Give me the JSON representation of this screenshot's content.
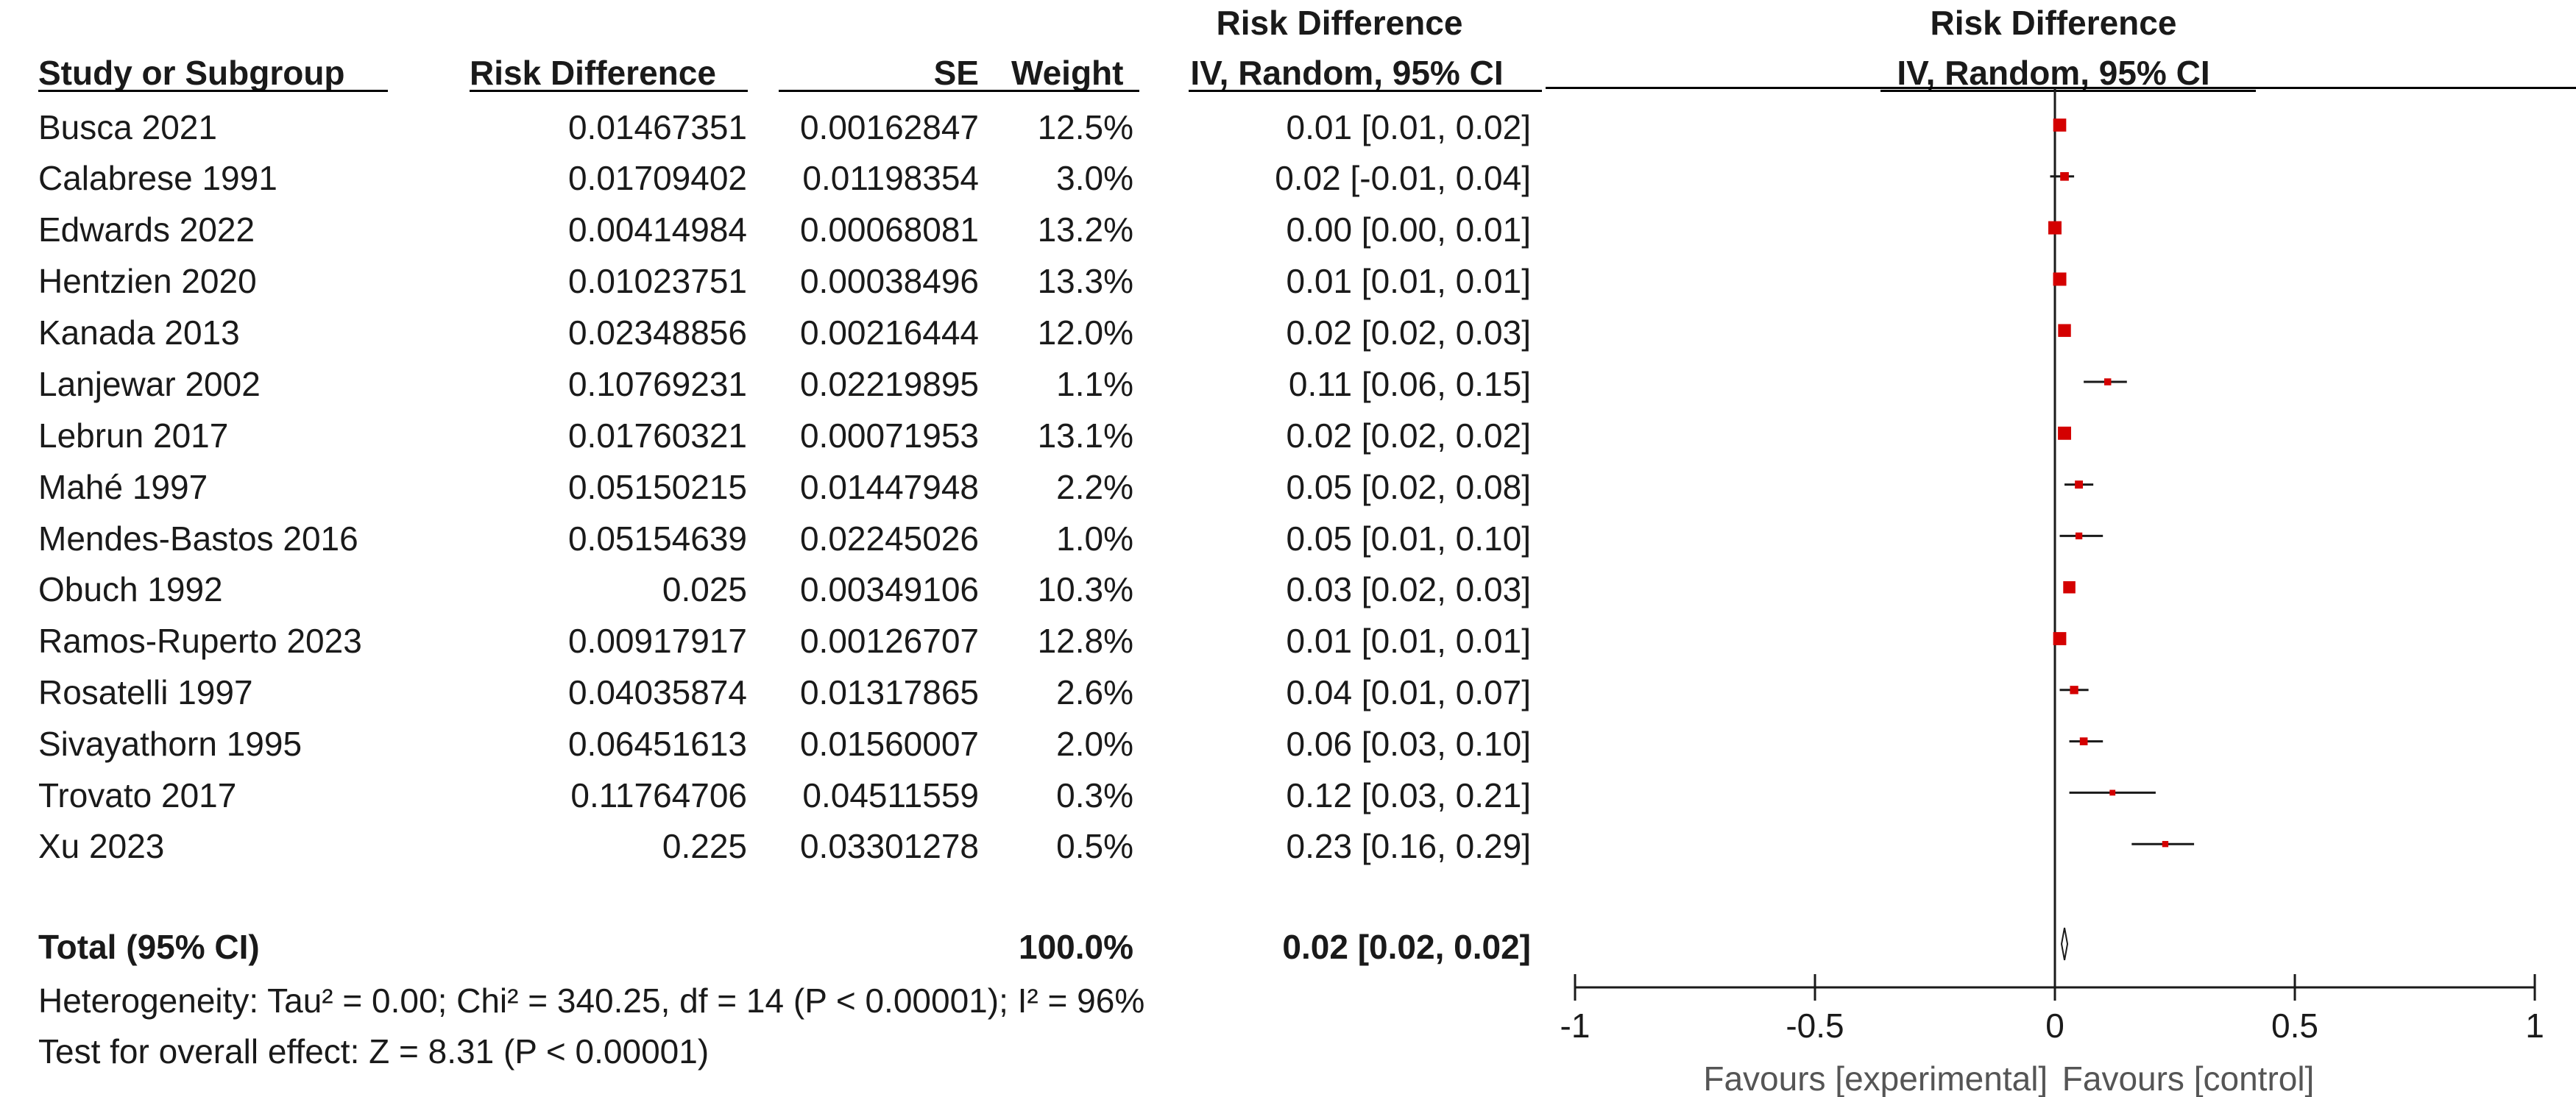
{
  "header": {
    "study": "Study or Subgroup",
    "rd": "Risk Difference",
    "se": "SE",
    "weight": "Weight",
    "ci_title": "Risk Difference",
    "ci_sub": "IV, Random, 95% CI",
    "plot_title": "Risk Difference",
    "plot_sub": "IV, Random, 95% CI"
  },
  "rows": [
    {
      "study": "Busca 2021",
      "rd": "0.01467351",
      "se": "0.00162847",
      "weight": "12.5%",
      "ci": "0.01 [0.01, 0.02]"
    },
    {
      "study": "Calabrese 1991",
      "rd": "0.01709402",
      "se": "0.01198354",
      "weight": "3.0%",
      "ci": "0.02 [-0.01, 0.04]"
    },
    {
      "study": "Edwards 2022",
      "rd": "0.00414984",
      "se": "0.00068081",
      "weight": "13.2%",
      "ci": "0.00 [0.00, 0.01]"
    },
    {
      "study": "Hentzien 2020",
      "rd": "0.01023751",
      "se": "0.00038496",
      "weight": "13.3%",
      "ci": "0.01 [0.01, 0.01]"
    },
    {
      "study": "Kanada 2013",
      "rd": "0.02348856",
      "se": "0.00216444",
      "weight": "12.0%",
      "ci": "0.02 [0.02, 0.03]"
    },
    {
      "study": "Lanjewar 2002",
      "rd": "0.10769231",
      "se": "0.02219895",
      "weight": "1.1%",
      "ci": "0.11 [0.06, 0.15]"
    },
    {
      "study": "Lebrun 2017",
      "rd": "0.01760321",
      "se": "0.00071953",
      "weight": "13.1%",
      "ci": "0.02 [0.02, 0.02]"
    },
    {
      "study": "Mahé 1997",
      "rd": "0.05150215",
      "se": "0.01447948",
      "weight": "2.2%",
      "ci": "0.05 [0.02, 0.08]"
    },
    {
      "study": "Mendes-Bastos 2016",
      "rd": "0.05154639",
      "se": "0.02245026",
      "weight": "1.0%",
      "ci": "0.05 [0.01, 0.10]"
    },
    {
      "study": "Obuch 1992",
      "rd": "0.025",
      "se": "0.00349106",
      "weight": "10.3%",
      "ci": "0.03 [0.02, 0.03]"
    },
    {
      "study": "Ramos-Ruperto 2023",
      "rd": "0.00917917",
      "se": "0.00126707",
      "weight": "12.8%",
      "ci": "0.01 [0.01, 0.01]"
    },
    {
      "study": "Rosatelli 1997",
      "rd": "0.04035874",
      "se": "0.01317865",
      "weight": "2.6%",
      "ci": "0.04 [0.01, 0.07]"
    },
    {
      "study": "Sivayathorn 1995",
      "rd": "0.06451613",
      "se": "0.01560007",
      "weight": "2.0%",
      "ci": "0.06 [0.03, 0.10]"
    },
    {
      "study": "Trovato 2017",
      "rd": "0.11764706",
      "se": "0.04511559",
      "weight": "0.3%",
      "ci": "0.12 [0.03, 0.21]"
    },
    {
      "study": "Xu 2023",
      "rd": "0.225",
      "se": "0.03301278",
      "weight": "0.5%",
      "ci": "0.23 [0.16, 0.29]"
    }
  ],
  "total": {
    "label": "Total (95% CI)",
    "weight": "100.0%",
    "ci": "0.02 [0.02, 0.02]"
  },
  "heterogeneity": "Heterogeneity: Tau² = 0.00; Chi² = 340.25, df = 14 (P < 0.00001); I² = 96%",
  "overall_effect": "Test for overall effect: Z = 8.31 (P < 0.00001)",
  "axis": {
    "ticks": [
      "-1",
      "-0.5",
      "0",
      "0.5",
      "1"
    ],
    "favours_left": "Favours [experimental]",
    "favours_right": "Favours [control]"
  },
  "colors": {
    "marker": "#d40000",
    "ink": "#1a1a1a"
  },
  "chart_data": {
    "type": "scatter",
    "title": "Risk Difference",
    "subtitle": "IV, Random, 95% CI",
    "xlim": [
      -1,
      1
    ],
    "xticks": [
      -1,
      -0.5,
      0,
      0.5,
      1
    ],
    "estimates": [
      0.01,
      0.02,
      0.0,
      0.01,
      0.02,
      0.11,
      0.02,
      0.05,
      0.05,
      0.03,
      0.01,
      0.04,
      0.06,
      0.12,
      0.23
    ],
    "ci_lower": [
      0.01,
      -0.01,
      0.0,
      0.01,
      0.02,
      0.06,
      0.02,
      0.02,
      0.01,
      0.02,
      0.01,
      0.01,
      0.03,
      0.03,
      0.16
    ],
    "ci_upper": [
      0.02,
      0.04,
      0.01,
      0.01,
      0.03,
      0.15,
      0.02,
      0.08,
      0.1,
      0.03,
      0.01,
      0.07,
      0.1,
      0.21,
      0.29
    ],
    "weights": [
      12.5,
      3.0,
      13.2,
      13.3,
      12.0,
      1.1,
      13.1,
      2.2,
      1.0,
      10.3,
      12.8,
      2.6,
      2.0,
      0.3,
      0.5
    ],
    "total": {
      "estimate": 0.02,
      "ci_lower": 0.02,
      "ci_upper": 0.02
    }
  }
}
